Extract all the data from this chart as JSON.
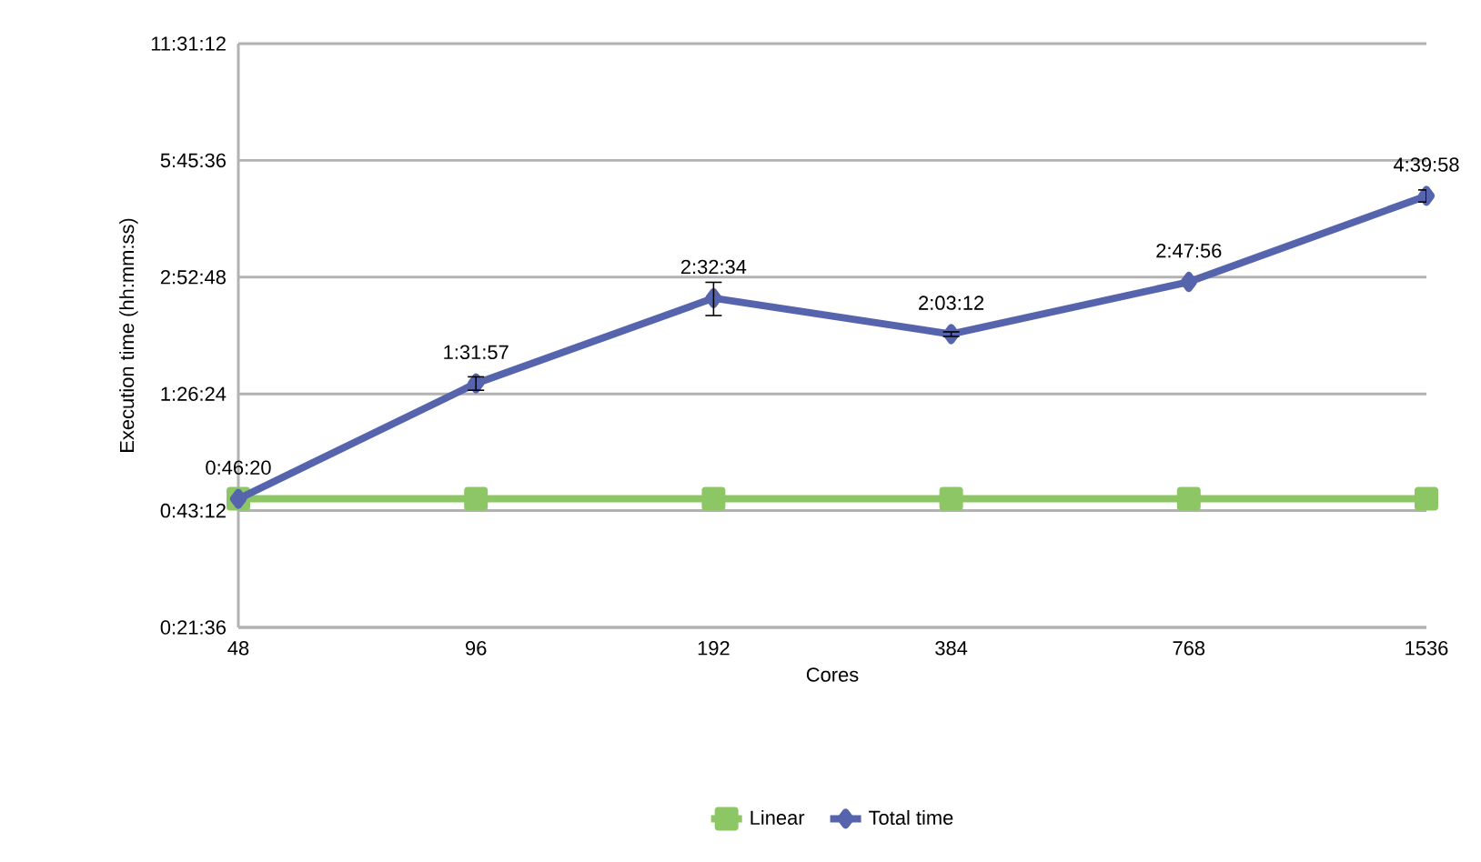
{
  "chart_data": {
    "type": "line",
    "xlabel": "Cores",
    "ylabel": "Execution time (hh:mm:ss)",
    "categories": [
      "48",
      "96",
      "192",
      "384",
      "768",
      "1536"
    ],
    "log": "y",
    "ylim": [
      1296,
      41472
    ],
    "yticks": [
      {
        "value": 1296,
        "label": "0:21:36"
      },
      {
        "value": 2592,
        "label": "0:43:12"
      },
      {
        "value": 5184,
        "label": "1:26:24"
      },
      {
        "value": 10368,
        "label": "2:52:48"
      },
      {
        "value": 20736,
        "label": "5:45:36"
      },
      {
        "value": 41472,
        "label": "11:31:12"
      }
    ],
    "grid": "y",
    "legend": "bottom",
    "series": [
      {
        "name": "Linear",
        "color": "#8cc665",
        "marker": "square",
        "values": [
          2780,
          2780,
          2780,
          2780,
          2780,
          2780
        ]
      },
      {
        "name": "Total time",
        "color": "#5664ad",
        "marker": "diamond",
        "values": [
          2780,
          5517,
          9154,
          7392,
          10076,
          16798
        ],
        "errors": [
          null,
          220,
          900,
          100,
          null,
          600
        ],
        "value_labels": [
          "0:46:20",
          "1:31:57",
          "2:32:34",
          "2:03:12",
          "2:47:56",
          "4:39:58"
        ]
      }
    ]
  }
}
